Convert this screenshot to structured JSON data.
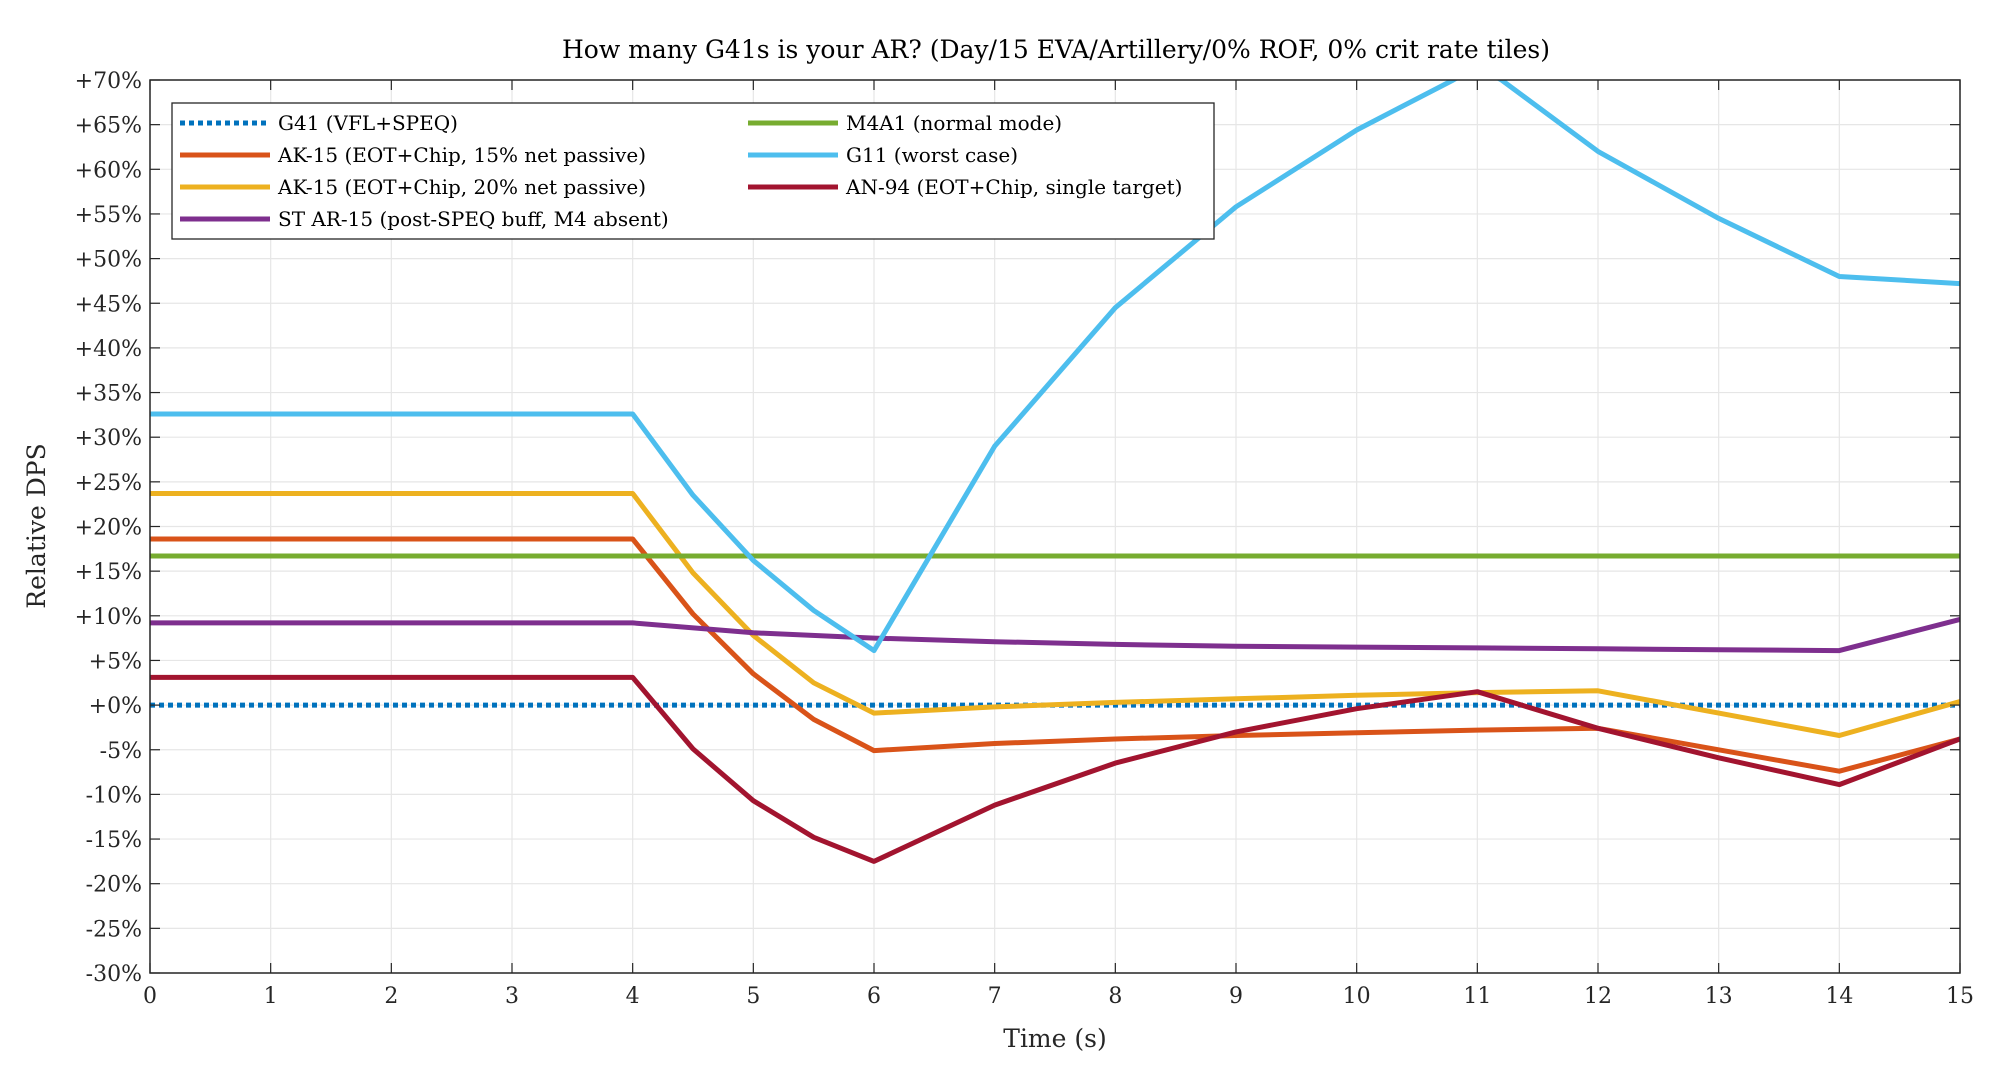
{
  "chart_data": {
    "type": "line",
    "title": "How many G41s is your AR? (Day/15 EVA/Artillery/0% ROF, 0% crit rate tiles)",
    "xlabel": "Time (s)",
    "ylabel": "Relative DPS",
    "xlim": [
      0,
      15
    ],
    "ylim": [
      -30,
      70
    ],
    "xticks": [
      0,
      1,
      2,
      3,
      4,
      5,
      6,
      7,
      8,
      9,
      10,
      11,
      12,
      13,
      14,
      15
    ],
    "yticks": [
      -30,
      -25,
      -20,
      -15,
      -10,
      -5,
      0,
      5,
      10,
      15,
      20,
      25,
      30,
      35,
      40,
      45,
      50,
      55,
      60,
      65,
      70
    ],
    "ytick_labels": [
      "-30%",
      "-25%",
      "-20%",
      "-15%",
      "-10%",
      "-5%",
      "+0%",
      "+5%",
      "+10%",
      "+15%",
      "+20%",
      "+25%",
      "+30%",
      "+35%",
      "+40%",
      "+45%",
      "+50%",
      "+55%",
      "+60%",
      "+65%",
      "+70%"
    ],
    "grid": true,
    "legend_position": "top-left",
    "series": [
      {
        "name": "G41 (VFL+SPEQ)",
        "color": "#0072BD",
        "style": "dotted",
        "x": [
          0,
          15
        ],
        "y": [
          0,
          0
        ]
      },
      {
        "name": "AK-15 (EOT+Chip, 15% net passive)",
        "color": "#D95319",
        "style": "solid",
        "x": [
          0,
          4,
          4.5,
          5,
          5.5,
          6,
          7,
          8,
          9,
          10,
          11,
          12,
          13,
          14,
          15
        ],
        "y": [
          18.6,
          18.6,
          10.2,
          3.5,
          -1.6,
          -5.1,
          -4.3,
          -3.8,
          -3.4,
          -3.1,
          -2.8,
          -2.6,
          -5.0,
          -7.4,
          -3.8
        ]
      },
      {
        "name": "AK-15 (EOT+Chip, 20% net passive)",
        "color": "#EDB120",
        "style": "solid",
        "x": [
          0,
          4,
          4.5,
          5,
          5.5,
          6,
          7,
          8,
          9,
          10,
          11,
          12,
          13,
          14,
          15
        ],
        "y": [
          23.7,
          23.7,
          14.8,
          7.8,
          2.5,
          -0.9,
          -0.2,
          0.3,
          0.7,
          1.1,
          1.4,
          1.6,
          -0.9,
          -3.4,
          0.4
        ]
      },
      {
        "name": "ST AR-15 (post-SPEQ buff, M4 absent)",
        "color": "#7E2F8E",
        "style": "solid",
        "x": [
          0,
          4,
          5,
          6,
          7,
          8,
          9,
          10,
          11,
          12,
          13,
          14,
          15
        ],
        "y": [
          9.2,
          9.2,
          8.1,
          7.5,
          7.1,
          6.8,
          6.6,
          6.5,
          6.4,
          6.3,
          6.2,
          6.1,
          9.6
        ]
      },
      {
        "name": "M4A1 (normal mode)",
        "color": "#77AC30",
        "style": "solid",
        "x": [
          0,
          15
        ],
        "y": [
          16.7,
          16.7
        ]
      },
      {
        "name": "G11 (worst case)",
        "color": "#4DBEEE",
        "style": "solid",
        "x": [
          0,
          4,
          4.5,
          5,
          5.5,
          6,
          7,
          8,
          9,
          10,
          10.8,
          11,
          11.2,
          12,
          13,
          14,
          15
        ],
        "y": [
          32.6,
          32.6,
          23.5,
          16.2,
          10.6,
          6.1,
          29.0,
          44.5,
          55.8,
          64.4,
          70.0,
          71.5,
          70.0,
          62.0,
          54.5,
          48.0,
          47.2
        ]
      },
      {
        "name": "AN-94 (EOT+Chip, single target)",
        "color": "#A2142F",
        "style": "solid",
        "x": [
          0,
          4,
          4.5,
          5,
          5.5,
          6,
          7,
          8,
          9,
          10,
          11,
          12,
          13,
          14,
          15
        ],
        "y": [
          3.1,
          3.1,
          -4.9,
          -10.7,
          -14.8,
          -17.5,
          -11.2,
          -6.5,
          -3.0,
          -0.4,
          1.5,
          -2.6,
          -5.9,
          -8.9,
          -3.8
        ]
      }
    ],
    "legend_order": [
      0,
      4,
      1,
      5,
      2,
      6,
      3
    ]
  }
}
